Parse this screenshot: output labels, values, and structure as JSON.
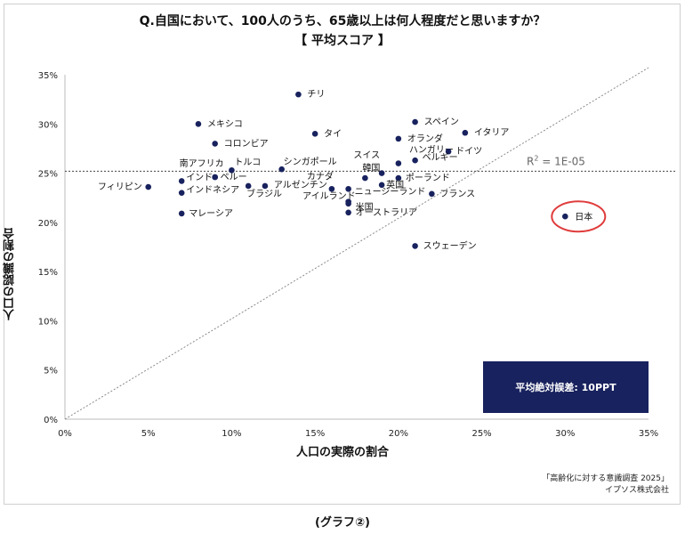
{
  "title_line1": "Q.自国において、100人のうち、65歳以上は何人程度だと思いますか？",
  "title_line2": "【 平均スコア 】",
  "source_line1": "「高齢化に対する意識調査 2025」",
  "source_line2": "イプソス株式会社",
  "caption": "(グラフ②)",
  "colors": {
    "point": "#18225e",
    "box": "#18225e",
    "highlight": "#e03c3c",
    "reference": "#8a8a8a"
  },
  "chart_data": {
    "type": "scatter",
    "xlabel": "人口の実際の割合",
    "ylabel": "人口の認識の割合",
    "xlim": [
      0,
      35
    ],
    "ylim": [
      0,
      35
    ],
    "xticks": [
      "0%",
      "5%",
      "10%",
      "15%",
      "20%",
      "25%",
      "30%",
      "35%"
    ],
    "yticks": [
      "0%",
      "5%",
      "10%",
      "15%",
      "20%",
      "25%",
      "30%",
      "35%"
    ],
    "grid": false,
    "diagonal_reference": true,
    "mean_line_y": 25.2,
    "r2_label": "R",
    "r2_sup": "2",
    "r2_value": " = 1E-05",
    "error_box_label": "平均絶対誤差: 10PPT",
    "highlight": "日本",
    "points": [
      {
        "label": "チリ",
        "x": 14,
        "y": 33
      },
      {
        "label": "メキシコ",
        "x": 8,
        "y": 30
      },
      {
        "label": "コロンビア",
        "x": 9,
        "y": 28
      },
      {
        "label": "タイ",
        "x": 15,
        "y": 29
      },
      {
        "label": "スペイン",
        "x": 21,
        "y": 30.2
      },
      {
        "label": "イタリア",
        "x": 24,
        "y": 29.1
      },
      {
        "label": "オランダ",
        "x": 20,
        "y": 28.5
      },
      {
        "label": "ハンガリー",
        "x": 20,
        "y": 26
      },
      {
        "label": "ドイツ",
        "x": 23,
        "y": 27.2
      },
      {
        "label": "ベルギー",
        "x": 21,
        "y": 26.3
      },
      {
        "label": "スイス",
        "x": 19,
        "y": 25
      },
      {
        "label": "南アフリカ",
        "x": 9,
        "y": 24.6
      },
      {
        "label": "トルコ",
        "x": 10,
        "y": 25.3
      },
      {
        "label": "シンガポール",
        "x": 13,
        "y": 25.4
      },
      {
        "label": "韓国",
        "x": 18,
        "y": 24.5
      },
      {
        "label": "ポーランド",
        "x": 20,
        "y": 24.5
      },
      {
        "label": "ペルー",
        "x": 9,
        "y": 24.6
      },
      {
        "label": "インド",
        "x": 7,
        "y": 24.2
      },
      {
        "label": "インドネシア",
        "x": 7,
        "y": 23
      },
      {
        "label": "フィリピン",
        "x": 5,
        "y": 23.6
      },
      {
        "label": "ブラジル",
        "x": 11,
        "y": 23.7
      },
      {
        "label": "アルゼンチン",
        "x": 12,
        "y": 23.7
      },
      {
        "label": "カナダ",
        "x": 16,
        "y": 23.4
      },
      {
        "label": "英国",
        "x": 19,
        "y": 23.8
      },
      {
        "label": "ニュージーランド",
        "x": 17,
        "y": 23.4
      },
      {
        "label": "アイルランド",
        "x": 17,
        "y": 22.1
      },
      {
        "label": "米国",
        "x": 17,
        "y": 21.9
      },
      {
        "label": "オーストラリア",
        "x": 17,
        "y": 21
      },
      {
        "label": "フランス",
        "x": 22,
        "y": 22.9
      },
      {
        "label": "マレーシア",
        "x": 7,
        "y": 20.9
      },
      {
        "label": "スウェーデン",
        "x": 21,
        "y": 17.6
      },
      {
        "label": "日本",
        "x": 30,
        "y": 20.6
      }
    ]
  }
}
